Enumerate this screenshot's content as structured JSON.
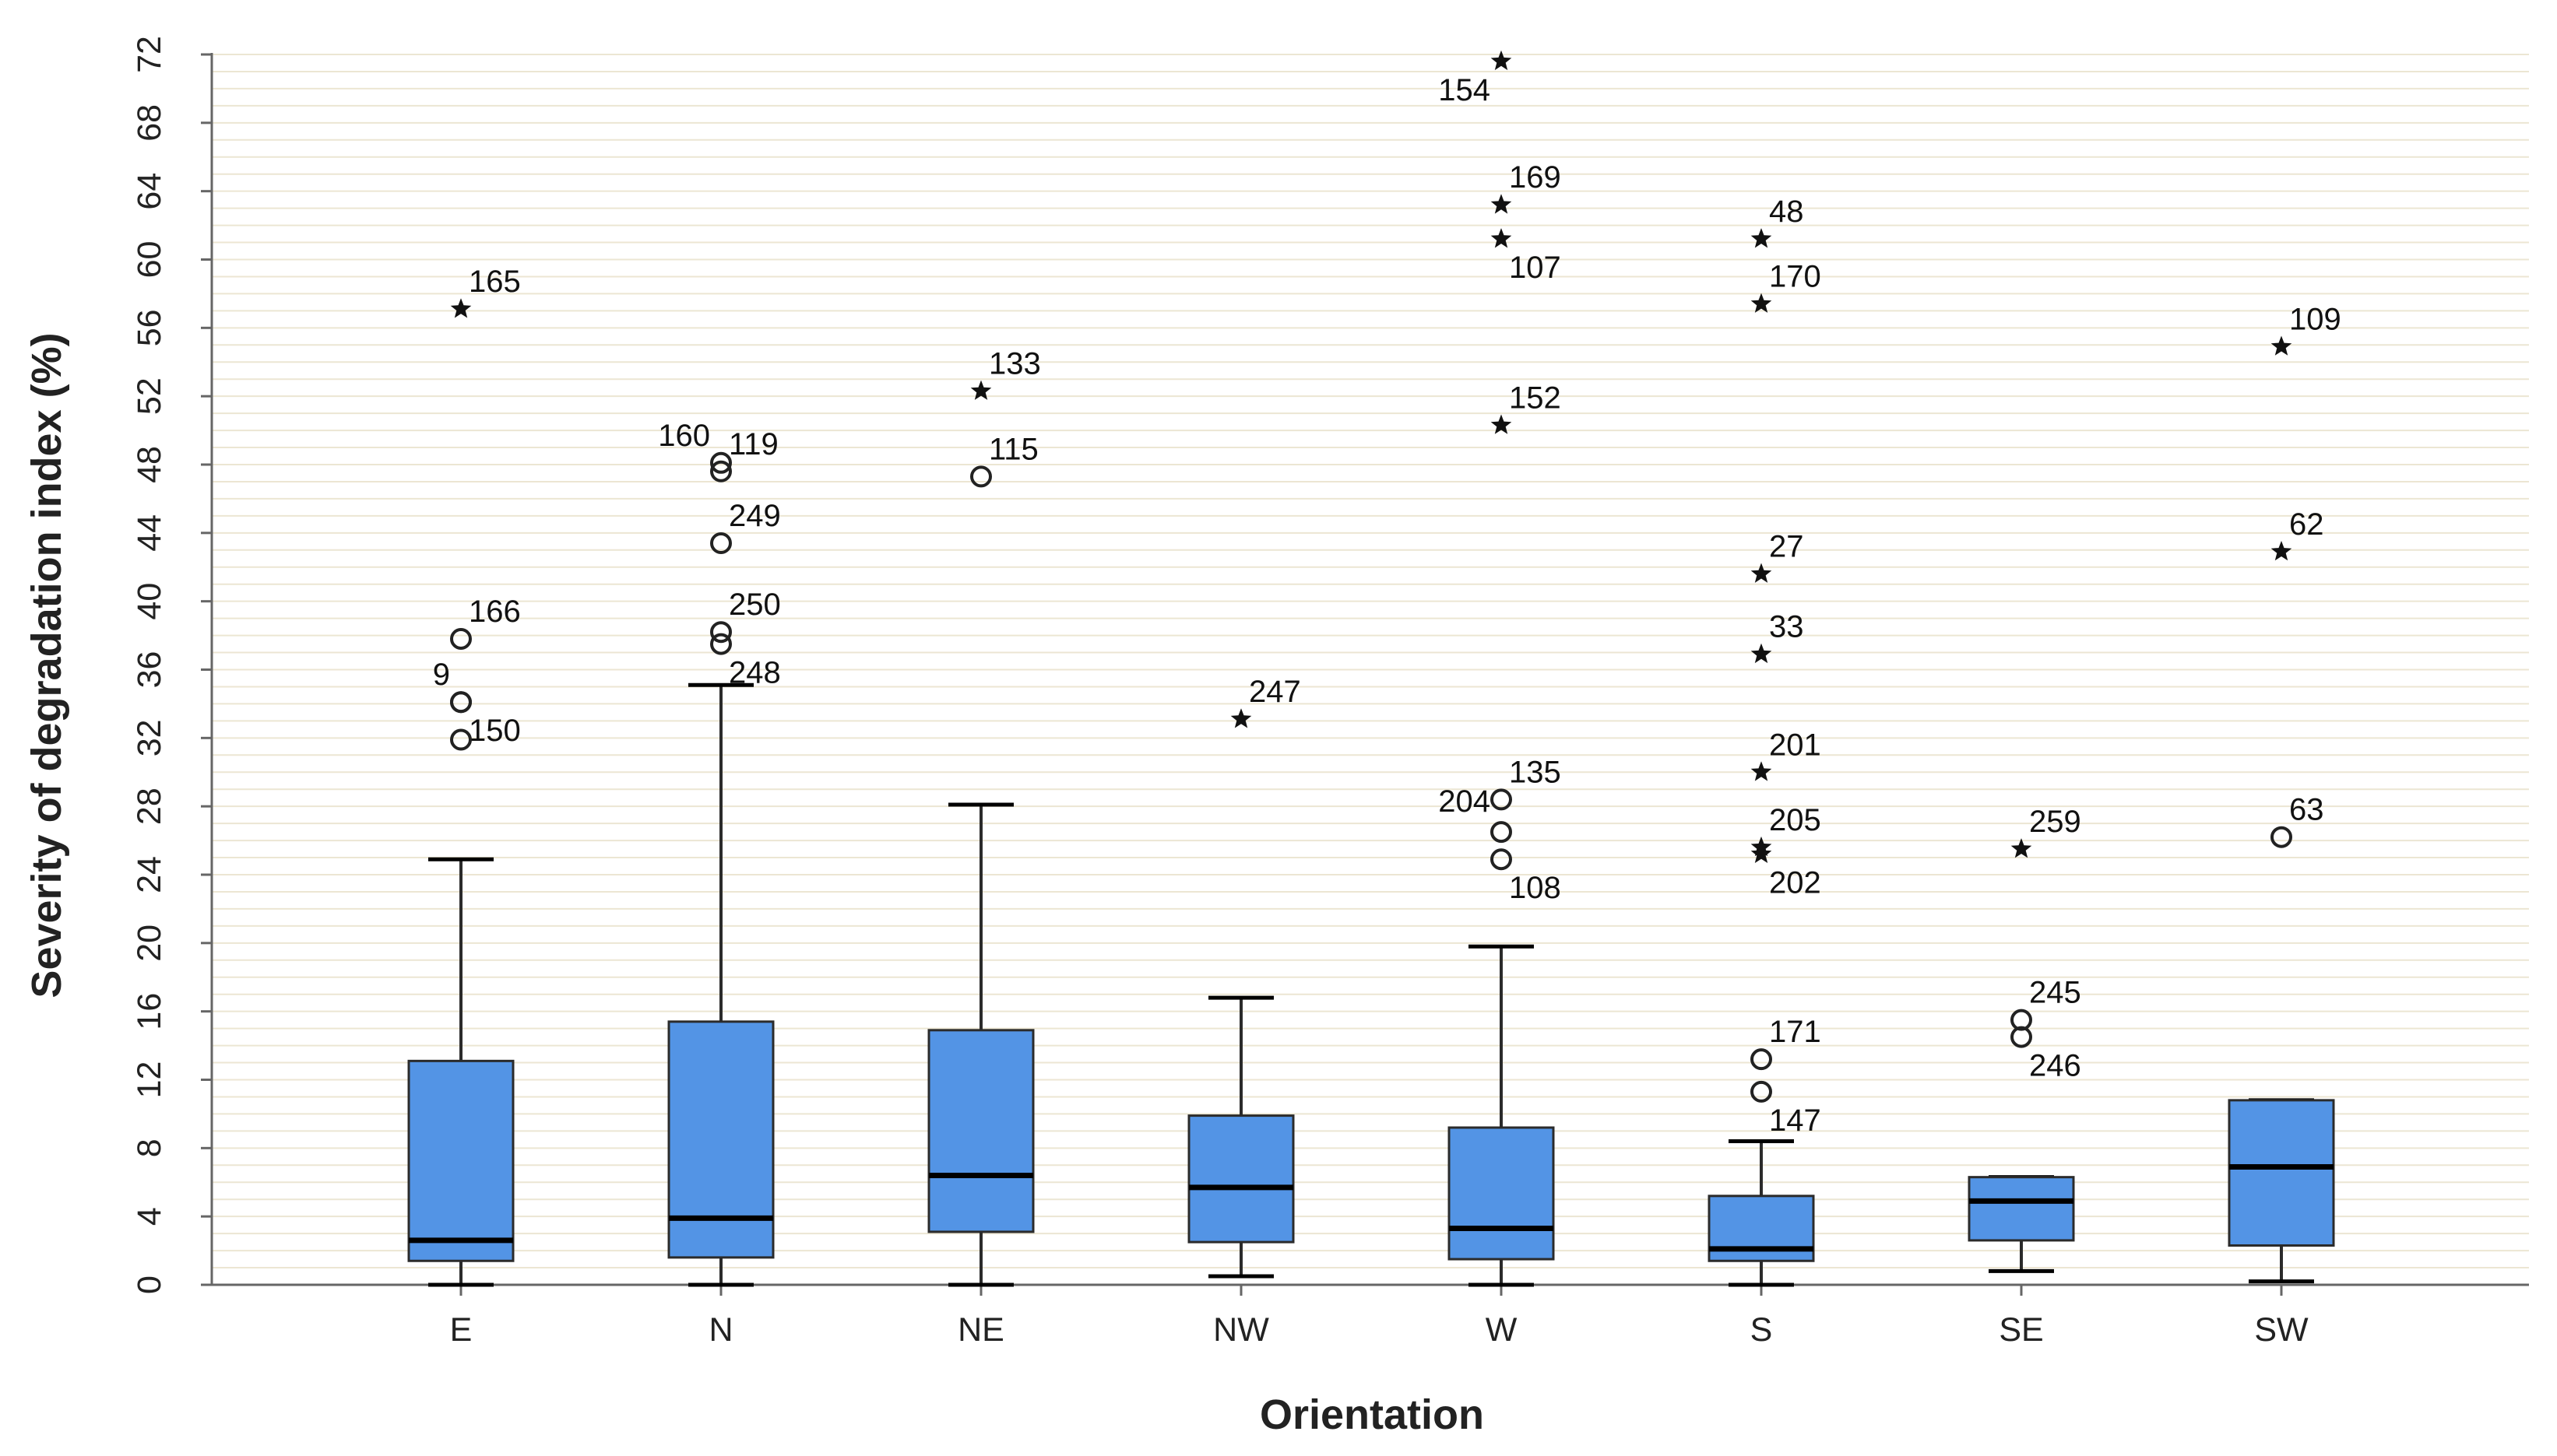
{
  "chart_data": {
    "type": "boxplot",
    "xlabel": "Orientation",
    "ylabel": "Severity of degradation index (%)",
    "ylim": [
      0,
      72
    ],
    "yticks": [
      0,
      4,
      8,
      12,
      16,
      20,
      24,
      28,
      32,
      36,
      40,
      44,
      48,
      52,
      56,
      60,
      64,
      68,
      72
    ],
    "grid_step": 1,
    "categories": [
      "E",
      "N",
      "NE",
      "NW",
      "W",
      "S",
      "SE",
      "SW"
    ],
    "boxes": [
      {
        "category": "E",
        "whisker_low": 0,
        "q1": 1.4,
        "median": 2.6,
        "q3": 13.1,
        "whisker_high": 24.9
      },
      {
        "category": "N",
        "whisker_low": 0,
        "q1": 1.6,
        "median": 3.9,
        "q3": 15.4,
        "whisker_high": 35.1
      },
      {
        "category": "NE",
        "whisker_low": 0,
        "q1": 3.1,
        "median": 6.4,
        "q3": 14.9,
        "whisker_high": 28.1
      },
      {
        "category": "NW",
        "whisker_low": 0.5,
        "q1": 2.5,
        "median": 5.7,
        "q3": 9.9,
        "whisker_high": 16.8
      },
      {
        "category": "W",
        "whisker_low": 0,
        "q1": 1.5,
        "median": 3.3,
        "q3": 9.2,
        "whisker_high": 19.8
      },
      {
        "category": "S",
        "whisker_low": 0,
        "q1": 1.4,
        "median": 2.1,
        "q3": 5.2,
        "whisker_high": 8.4
      },
      {
        "category": "SE",
        "whisker_low": 0.8,
        "q1": 2.6,
        "median": 4.9,
        "q3": 6.3,
        "whisker_high": 6.3
      },
      {
        "category": "SW",
        "whisker_low": 0.2,
        "q1": 2.3,
        "median": 6.9,
        "q3": 10.8,
        "whisker_high": 10.8
      }
    ],
    "outliers": [
      {
        "category": "E",
        "value": 57.1,
        "symbol": "star",
        "label": "165",
        "anchor": "right"
      },
      {
        "category": "E",
        "value": 37.8,
        "symbol": "circle",
        "label": "166",
        "anchor": "right"
      },
      {
        "category": "E",
        "value": 34.1,
        "symbol": "circle",
        "label": "9",
        "anchor": "left"
      },
      {
        "category": "E",
        "value": 34.1,
        "symbol": "circle",
        "label": "150",
        "anchor": "right-low"
      },
      {
        "category": "E",
        "value": 31.9,
        "symbol": "circle",
        "label": "",
        "anchor": "right"
      },
      {
        "category": "N",
        "value": 48.1,
        "symbol": "circle",
        "label": "160",
        "anchor": "left"
      },
      {
        "category": "N",
        "value": 47.6,
        "symbol": "circle",
        "label": "119",
        "anchor": "right"
      },
      {
        "category": "N",
        "value": 43.4,
        "symbol": "circle",
        "label": "249",
        "anchor": "right"
      },
      {
        "category": "N",
        "value": 38.2,
        "symbol": "circle",
        "label": "250",
        "anchor": "right"
      },
      {
        "category": "N",
        "value": 37.5,
        "symbol": "circle",
        "label": "248",
        "anchor": "right-low"
      },
      {
        "category": "NE",
        "value": 52.3,
        "symbol": "star",
        "label": "133",
        "anchor": "right"
      },
      {
        "category": "NE",
        "value": 47.3,
        "symbol": "circle",
        "label": "115",
        "anchor": "right"
      },
      {
        "category": "NW",
        "value": 33.1,
        "symbol": "star",
        "label": "247",
        "anchor": "right"
      },
      {
        "category": "W",
        "value": 71.6,
        "symbol": "star",
        "label": "154",
        "anchor": "left-low"
      },
      {
        "category": "W",
        "value": 63.2,
        "symbol": "star",
        "label": "169",
        "anchor": "right"
      },
      {
        "category": "W",
        "value": 61.2,
        "symbol": "star",
        "label": "107",
        "anchor": "right-low"
      },
      {
        "category": "W",
        "value": 50.3,
        "symbol": "star",
        "label": "152",
        "anchor": "right"
      },
      {
        "category": "W",
        "value": 28.4,
        "symbol": "circle",
        "label": "135",
        "anchor": "right"
      },
      {
        "category": "W",
        "value": 26.5,
        "symbol": "circle",
        "label": "204",
        "anchor": "left-high"
      },
      {
        "category": "W",
        "value": 24.9,
        "symbol": "circle",
        "label": "108",
        "anchor": "right-low"
      },
      {
        "category": "S",
        "value": 61.2,
        "symbol": "star",
        "label": "48",
        "anchor": "right"
      },
      {
        "category": "S",
        "value": 57.4,
        "symbol": "star",
        "label": "170",
        "anchor": "right"
      },
      {
        "category": "S",
        "value": 41.6,
        "symbol": "star",
        "label": "27",
        "anchor": "right"
      },
      {
        "category": "S",
        "value": 36.9,
        "symbol": "star",
        "label": "33",
        "anchor": "right"
      },
      {
        "category": "S",
        "value": 30.0,
        "symbol": "star",
        "label": "201",
        "anchor": "right"
      },
      {
        "category": "S",
        "value": 25.6,
        "symbol": "star",
        "label": "205",
        "anchor": "right"
      },
      {
        "category": "S",
        "value": 25.2,
        "symbol": "star",
        "label": "202",
        "anchor": "right-low"
      },
      {
        "category": "S",
        "value": 13.2,
        "symbol": "circle",
        "label": "171",
        "anchor": "right"
      },
      {
        "category": "S",
        "value": 11.3,
        "symbol": "circle",
        "label": "147",
        "anchor": "right-low"
      },
      {
        "category": "SE",
        "value": 25.5,
        "symbol": "star",
        "label": "259",
        "anchor": "right"
      },
      {
        "category": "SE",
        "value": 15.5,
        "symbol": "circle",
        "label": "245",
        "anchor": "right"
      },
      {
        "category": "SE",
        "value": 14.5,
        "symbol": "circle",
        "label": "246",
        "anchor": "right-low"
      },
      {
        "category": "SW",
        "value": 54.9,
        "symbol": "star",
        "label": "109",
        "anchor": "right"
      },
      {
        "category": "SW",
        "value": 42.9,
        "symbol": "star",
        "label": "62",
        "anchor": "right"
      },
      {
        "category": "SW",
        "value": 26.2,
        "symbol": "circle",
        "label": "63",
        "anchor": "right"
      }
    ],
    "colors": {
      "box_fill": "#5394e5",
      "box_stroke": "#2b2b2b",
      "gridline": "#ece6d3",
      "axis": "#666666",
      "median": "#000000"
    }
  }
}
